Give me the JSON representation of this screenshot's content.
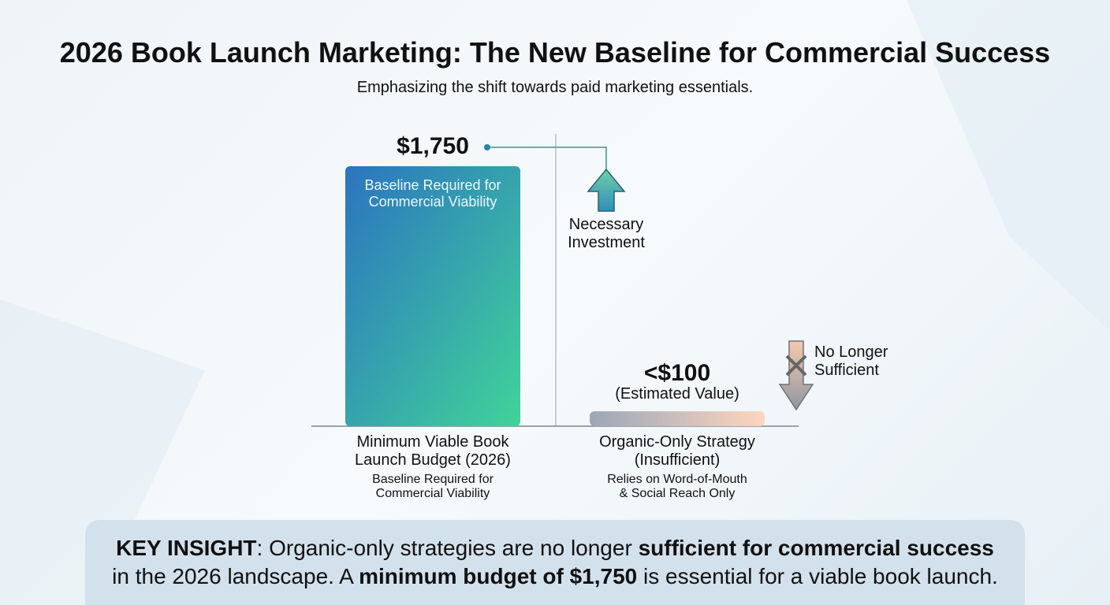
{
  "chart_data": {
    "type": "bar",
    "title": "2026 Book Launch Marketing: The New Baseline for Commercial Success",
    "subtitle": "Emphasizing the shift towards paid marketing essentials.",
    "categories": [
      "Minimum Viable Book Launch Budget (2026)",
      "Organic-Only Strategy (Insufficient)"
    ],
    "category_notes": [
      "Baseline Required for Commercial Viability",
      "Relies on Word-of-Mouth & Social Reach Only"
    ],
    "values": [
      1750,
      100
    ],
    "value_labels": [
      "$1,750",
      "<$100"
    ],
    "colors": [
      [
        "#2b74bf",
        "#41d39a"
      ],
      [
        "#9ba7b8",
        "#fdd6bf"
      ]
    ],
    "annotations": {
      "bar_inner": "Baseline Required for Commercial Viability",
      "estimated": "(Estimated Value)",
      "up": "Necessary Investment",
      "down": "No Longer Sufficient"
    }
  },
  "insight": [
    {
      "text": "KEY INSIGHT",
      "bold": true
    },
    {
      "text": ": Organic-only strategies are no longer ",
      "bold": false
    },
    {
      "text": "sufficient for commercial success",
      "bold": true
    },
    {
      "text": " in the 2026 landscape. A ",
      "bold": false
    },
    {
      "text": "minimum budget of $1,750",
      "bold": true
    },
    {
      "text": " is essential for a viable book launch.",
      "bold": false
    }
  ]
}
